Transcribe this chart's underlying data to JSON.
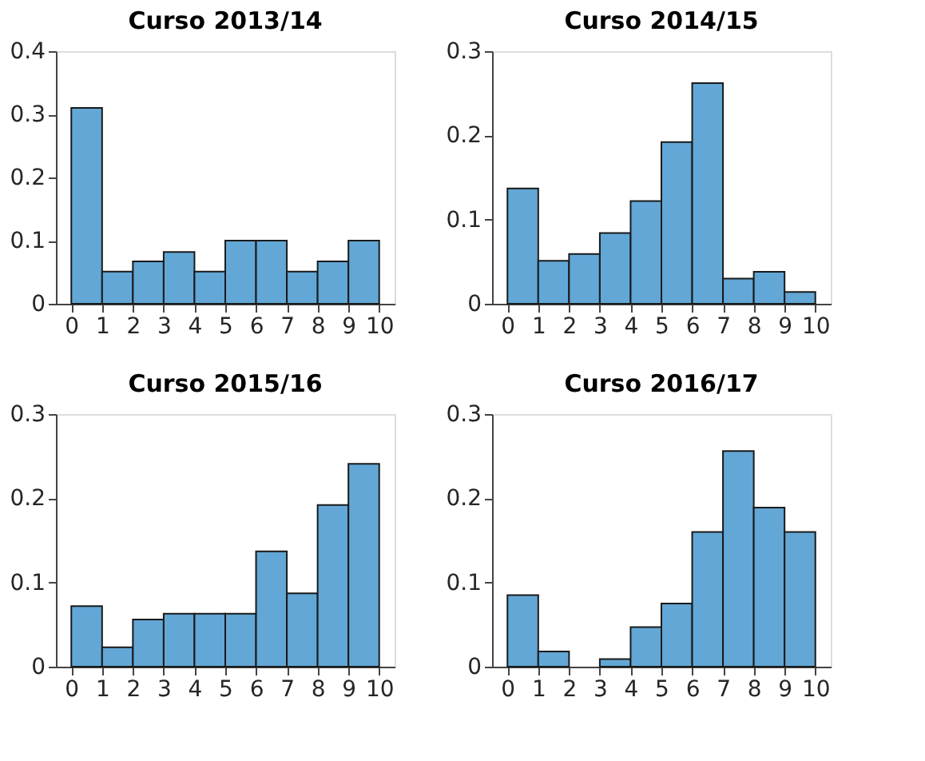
{
  "chart_data": [
    {
      "type": "histogram",
      "title": "Curso 2013/14",
      "bins": [
        0,
        1,
        2,
        3,
        4,
        5,
        6,
        7,
        8,
        9,
        10
      ],
      "values": [
        0.31,
        0.051,
        0.067,
        0.082,
        0.051,
        0.1,
        0.1,
        0.051,
        0.067,
        0.1
      ],
      "color": "#62a7d6",
      "xlim": [
        -0.5,
        10.5
      ],
      "xticks": [
        0,
        1,
        2,
        3,
        4,
        5,
        6,
        7,
        8,
        9,
        10
      ],
      "ylim": [
        0,
        0.4
      ],
      "yticks": [
        0,
        0.1,
        0.2,
        0.3,
        0.4
      ],
      "grid": false
    },
    {
      "type": "histogram",
      "title": "Curso 2014/15",
      "bins": [
        0,
        1,
        2,
        3,
        4,
        5,
        6,
        7,
        8,
        9,
        10
      ],
      "values": [
        0.137,
        0.051,
        0.059,
        0.084,
        0.122,
        0.192,
        0.262,
        0.03,
        0.038,
        0.014
      ],
      "color": "#62a7d6",
      "xlim": [
        -0.5,
        10.5
      ],
      "xticks": [
        0,
        1,
        2,
        3,
        4,
        5,
        6,
        7,
        8,
        9,
        10
      ],
      "ylim": [
        0,
        0.3
      ],
      "yticks": [
        0,
        0.1,
        0.2,
        0.3
      ],
      "grid": false
    },
    {
      "type": "histogram",
      "title": "Curso 2015/16",
      "bins": [
        0,
        1,
        2,
        3,
        4,
        5,
        6,
        7,
        8,
        9,
        10
      ],
      "values": [
        0.072,
        0.023,
        0.056,
        0.063,
        0.063,
        0.063,
        0.137,
        0.087,
        0.192,
        0.241
      ],
      "color": "#62a7d6",
      "xlim": [
        -0.5,
        10.5
      ],
      "xticks": [
        0,
        1,
        2,
        3,
        4,
        5,
        6,
        7,
        8,
        9,
        10
      ],
      "ylim": [
        0,
        0.3
      ],
      "yticks": [
        0,
        0.1,
        0.2,
        0.3
      ],
      "grid": false
    },
    {
      "type": "histogram",
      "title": "Curso 2016/17",
      "bins": [
        0,
        1,
        2,
        3,
        4,
        5,
        6,
        7,
        8,
        9,
        10
      ],
      "values": [
        0.085,
        0.018,
        0,
        0.009,
        0.047,
        0.075,
        0.16,
        0.256,
        0.189,
        0.16
      ],
      "color": "#62a7d6",
      "xlim": [
        -0.5,
        10.5
      ],
      "xticks": [
        0,
        1,
        2,
        3,
        4,
        5,
        6,
        7,
        8,
        9,
        10
      ],
      "ylim": [
        0,
        0.3
      ],
      "yticks": [
        0,
        0.1,
        0.2,
        0.3
      ],
      "grid": false
    }
  ]
}
